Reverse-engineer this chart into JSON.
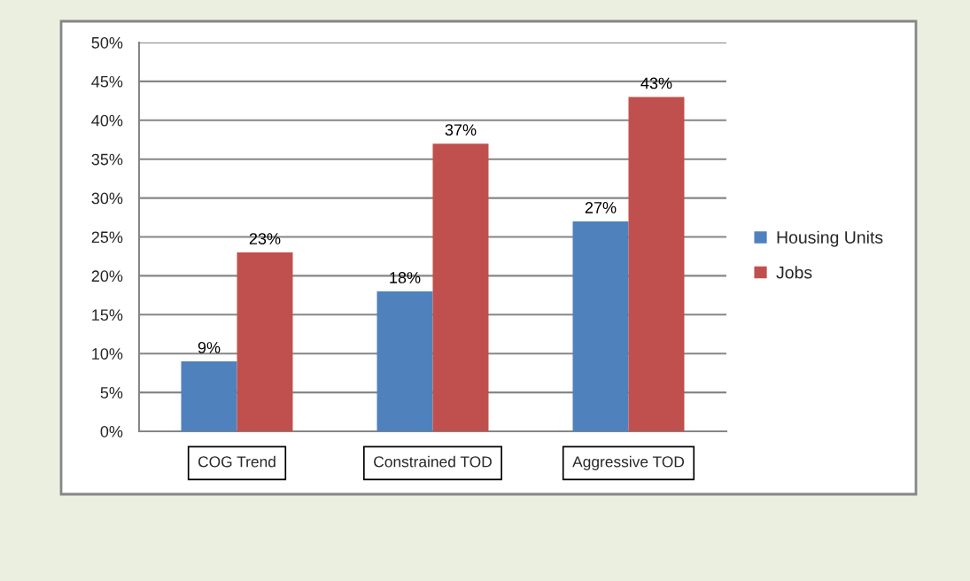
{
  "chart_data": {
    "type": "bar",
    "categories": [
      "COG Trend",
      "Constrained TOD",
      "Aggressive TOD"
    ],
    "series": [
      {
        "name": "Housing Units",
        "color": "#4f81bd",
        "values": [
          9,
          18,
          27
        ],
        "value_labels": [
          "9%",
          "18%",
          "27%"
        ]
      },
      {
        "name": "Jobs",
        "color": "#c0504d",
        "values": [
          23,
          37,
          43
        ],
        "value_labels": [
          "23%",
          "37%",
          "43%"
        ]
      }
    ],
    "ylim": [
      0,
      50
    ],
    "yticks": [
      {
        "value": 0,
        "label": "0%"
      },
      {
        "value": 5,
        "label": "5%"
      },
      {
        "value": 10,
        "label": "10%"
      },
      {
        "value": 15,
        "label": "15%"
      },
      {
        "value": 20,
        "label": "20%"
      },
      {
        "value": 25,
        "label": "25%"
      },
      {
        "value": 30,
        "label": "30%"
      },
      {
        "value": 35,
        "label": "35%"
      },
      {
        "value": 40,
        "label": "40%"
      },
      {
        "value": 45,
        "label": "45%"
      },
      {
        "value": 50,
        "label": "50%"
      }
    ],
    "grid": "y",
    "legend": "right"
  }
}
